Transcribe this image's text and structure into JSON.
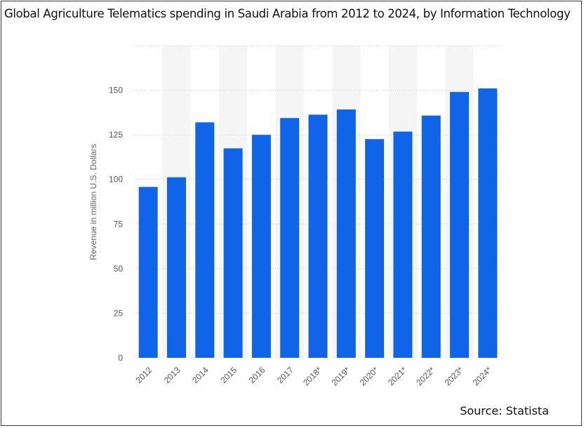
{
  "title": "Global Agriculture Telematics spending in Saudi Arabia from 2012 to 2024, by Information Technology",
  "source": "Source: Statista",
  "chart_data": {
    "type": "bar",
    "title": "Global Agriculture Telematics spending in Saudi Arabia from 2012 to 2024, by Information Technology",
    "categories": [
      "2012",
      "2013",
      "2014",
      "2015",
      "2016",
      "2017",
      "2018*",
      "2019*",
      "2020*",
      "2021*",
      "2022*",
      "2023*",
      "2024*"
    ],
    "values": [
      95.8,
      101.2,
      132,
      117.4,
      125,
      134.4,
      136.3,
      139.2,
      122.6,
      126.8,
      135.8,
      149,
      151
    ],
    "ylabel": "Revenue in million U.S. Dollars",
    "xlabel": "",
    "ylim": [
      0,
      175
    ],
    "yticks": [
      0,
      25,
      50,
      75,
      100,
      125,
      150
    ],
    "grid": true,
    "bar_color": "#0f64e8",
    "grid_color": "#cccccc",
    "band_color": "#f5f5f5"
  }
}
